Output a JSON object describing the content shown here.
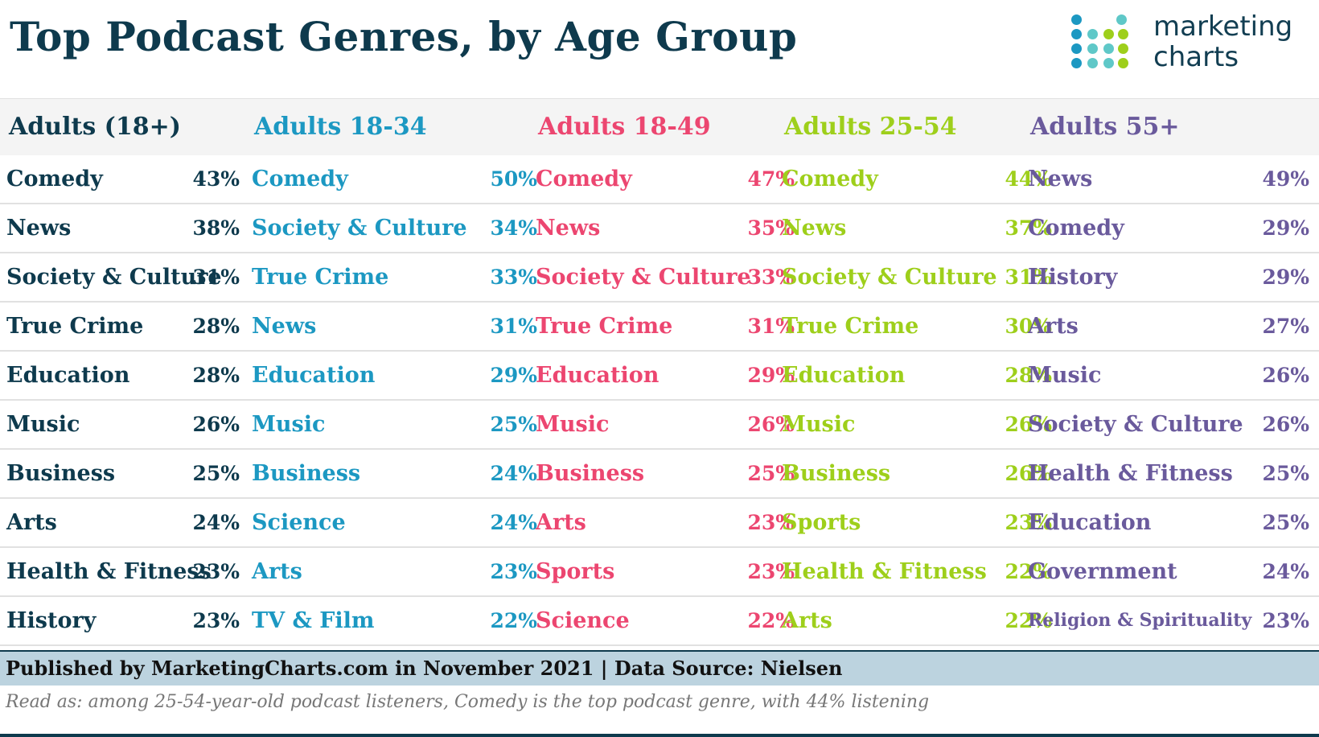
{
  "title": "Top Podcast Genres, by Age Group",
  "logo": {
    "line1": "marketing",
    "line2": "charts"
  },
  "colors": {
    "navy": "#0e3a4d",
    "blue": "#1c98c2",
    "pink": "#ec4670",
    "green": "#9ecf1b",
    "purple": "#6a5a9c"
  },
  "chart_data": {
    "type": "table",
    "title": "Top Podcast Genres, by Age Group",
    "series": [
      {
        "name": "Adults (18+)",
        "color": "#0e3a4d",
        "rows": [
          {
            "genre": "Comedy",
            "value": "43%"
          },
          {
            "genre": "News",
            "value": "38%"
          },
          {
            "genre": "Society & Culture",
            "value": "31%"
          },
          {
            "genre": "True Crime",
            "value": "28%"
          },
          {
            "genre": "Education",
            "value": "28%"
          },
          {
            "genre": "Music",
            "value": "26%"
          },
          {
            "genre": "Business",
            "value": "25%"
          },
          {
            "genre": "Arts",
            "value": "24%"
          },
          {
            "genre": "Health & Fitness",
            "value": "23%"
          },
          {
            "genre": "History",
            "value": "23%"
          }
        ]
      },
      {
        "name": "Adults 18-34",
        "color": "#1c98c2",
        "rows": [
          {
            "genre": "Comedy",
            "value": "50%"
          },
          {
            "genre": "Society & Culture",
            "value": "34%"
          },
          {
            "genre": "True Crime",
            "value": "33%"
          },
          {
            "genre": "News",
            "value": "31%"
          },
          {
            "genre": "Education",
            "value": "29%"
          },
          {
            "genre": "Music",
            "value": "25%"
          },
          {
            "genre": "Business",
            "value": "24%"
          },
          {
            "genre": "Science",
            "value": "24%"
          },
          {
            "genre": "Arts",
            "value": "23%"
          },
          {
            "genre": "TV & Film",
            "value": "22%"
          }
        ]
      },
      {
        "name": "Adults 18-49",
        "color": "#ec4670",
        "rows": [
          {
            "genre": "Comedy",
            "value": "47%"
          },
          {
            "genre": "News",
            "value": "35%"
          },
          {
            "genre": "Society & Culture",
            "value": "33%"
          },
          {
            "genre": "True Crime",
            "value": "31%"
          },
          {
            "genre": "Education",
            "value": "29%"
          },
          {
            "genre": "Music",
            "value": "26%"
          },
          {
            "genre": "Business",
            "value": "25%"
          },
          {
            "genre": "Arts",
            "value": "23%"
          },
          {
            "genre": "Sports",
            "value": "23%"
          },
          {
            "genre": "Science",
            "value": "22%"
          }
        ]
      },
      {
        "name": "Adults 25-54",
        "color": "#9ecf1b",
        "rows": [
          {
            "genre": "Comedy",
            "value": "44%"
          },
          {
            "genre": "News",
            "value": "37%"
          },
          {
            "genre": "Society & Culture",
            "value": "31%"
          },
          {
            "genre": "True Crime",
            "value": "30%"
          },
          {
            "genre": "Education",
            "value": "28%"
          },
          {
            "genre": "Music",
            "value": "26%"
          },
          {
            "genre": "Business",
            "value": "26%"
          },
          {
            "genre": "Sports",
            "value": "23%"
          },
          {
            "genre": "Health & Fitness",
            "value": "22%"
          },
          {
            "genre": "Arts",
            "value": "22%"
          }
        ]
      },
      {
        "name": "Adults 55+",
        "color": "#6a5a9c",
        "rows": [
          {
            "genre": "News",
            "value": "49%"
          },
          {
            "genre": "Comedy",
            "value": "29%"
          },
          {
            "genre": "History",
            "value": "29%"
          },
          {
            "genre": "Arts",
            "value": "27%"
          },
          {
            "genre": "Music",
            "value": "26%"
          },
          {
            "genre": "Society & Culture",
            "value": "26%"
          },
          {
            "genre": "Health & Fitness",
            "value": "25%"
          },
          {
            "genre": "Education",
            "value": "25%"
          },
          {
            "genre": "Government",
            "value": "24%"
          },
          {
            "genre": "Religion & Spirituality",
            "value": "23%"
          }
        ]
      }
    ]
  },
  "footer": {
    "published": "Published by MarketingCharts.com in November 2021 | Data Source: Nielsen"
  },
  "note": "Read as: among 25-54-year-old podcast listeners, Comedy is the top podcast genre, with 44% listening"
}
